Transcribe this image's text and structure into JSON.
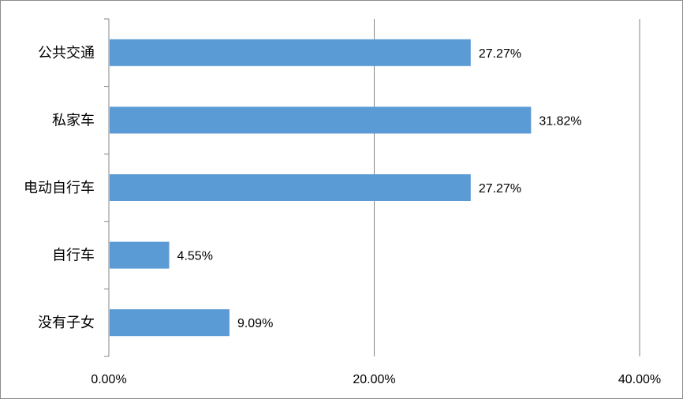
{
  "chart_data": {
    "type": "bar",
    "orientation": "horizontal",
    "categories": [
      "公共交通",
      "私家车",
      "电动自行车",
      "自行车",
      "没有子女"
    ],
    "values": [
      27.27,
      31.82,
      27.27,
      4.55,
      9.09
    ],
    "data_labels": [
      "27.27%",
      "31.82%",
      "27.27%",
      "4.55%",
      "9.09%"
    ],
    "xlim": [
      0,
      40
    ],
    "x_ticks": [
      0,
      20,
      40
    ],
    "x_tick_labels": [
      "0.00%",
      "20.00%",
      "40.00%"
    ],
    "title": "",
    "xlabel": "",
    "ylabel": "",
    "grid": "vertical",
    "legend": "none",
    "bar_color": "#5B9BD5",
    "grid_color": "#868686"
  }
}
